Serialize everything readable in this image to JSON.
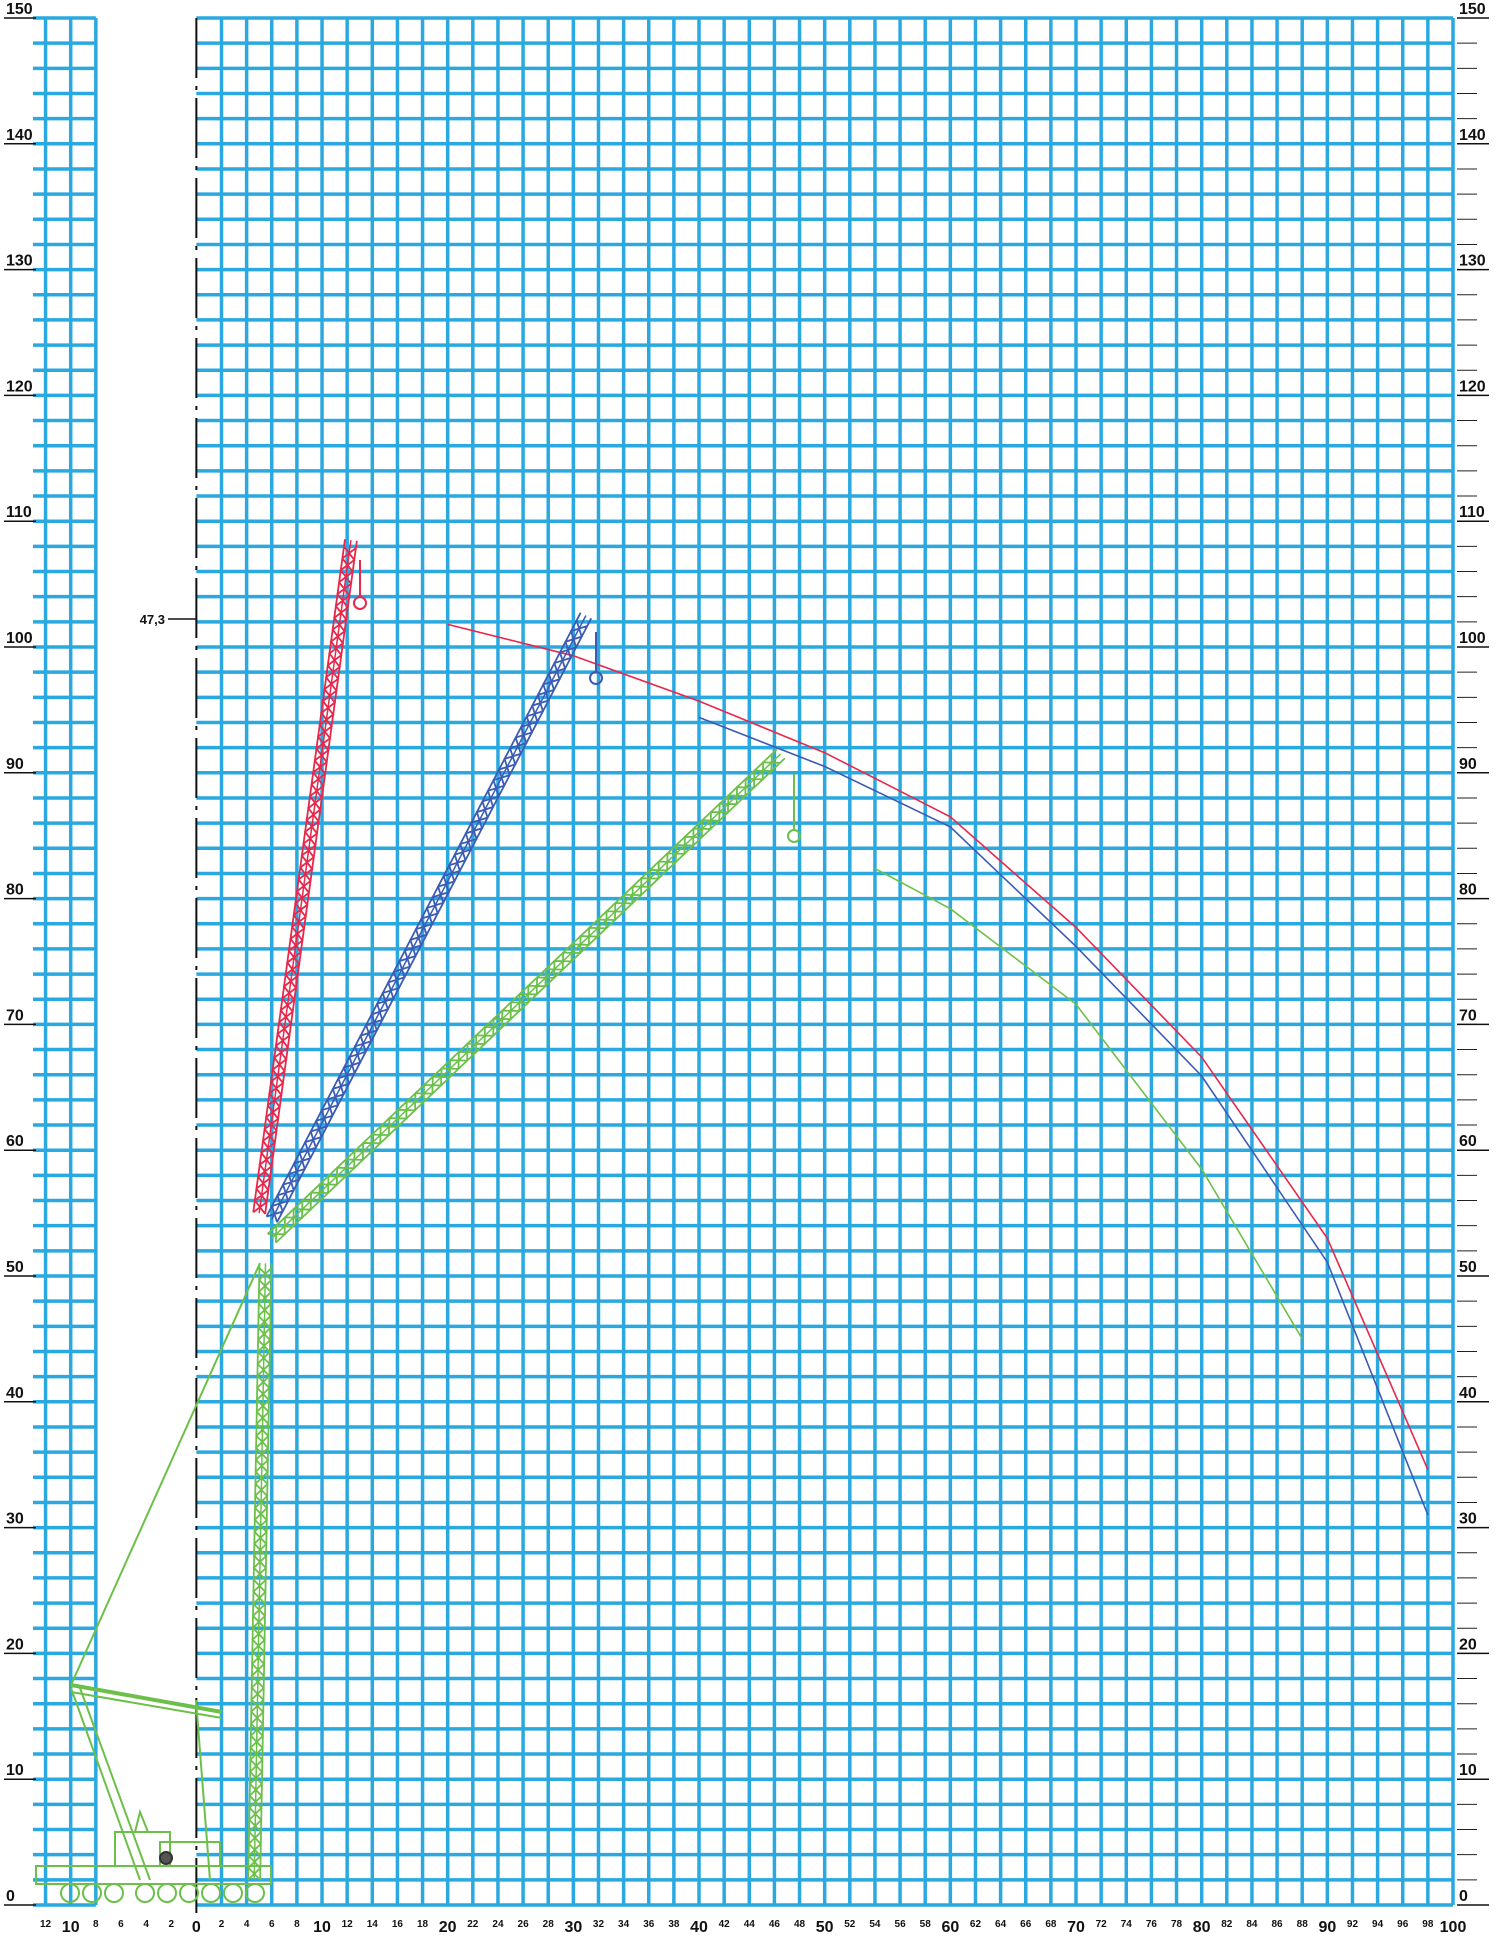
{
  "chart_data": {
    "type": "line",
    "xlim": [
      -13,
      100
    ],
    "ylim": [
      0,
      150
    ],
    "grid": true,
    "grid_color": "#2aa9e0",
    "grid_gap": [
      -8,
      0
    ],
    "xticks": [
      {
        "value": -12,
        "label": "12"
      },
      {
        "value": -10,
        "label": "10"
      },
      {
        "value": -8,
        "label": "8"
      },
      {
        "value": -6,
        "label": "6"
      },
      {
        "value": -4,
        "label": "4"
      },
      {
        "value": -2,
        "label": "2"
      },
      0,
      2,
      4,
      6,
      8,
      10,
      12,
      14,
      16,
      18,
      20,
      22,
      24,
      26,
      28,
      30,
      32,
      34,
      36,
      38,
      40,
      42,
      44,
      46,
      48,
      50,
      52,
      54,
      56,
      58,
      60,
      62,
      64,
      66,
      68,
      70,
      72,
      74,
      76,
      78,
      80,
      82,
      84,
      86,
      88,
      90,
      92,
      94,
      96,
      98,
      100
    ],
    "yticks": [
      0,
      10,
      20,
      30,
      40,
      50,
      60,
      70,
      80,
      90,
      100,
      110,
      120,
      130,
      140,
      150
    ],
    "y_gridlines": [
      0,
      2,
      4,
      6,
      8,
      10,
      12,
      14,
      16,
      18,
      20,
      22,
      24,
      26,
      28,
      30,
      32,
      34,
      36,
      38,
      40,
      42,
      44,
      46,
      48,
      50,
      52,
      54,
      56,
      58,
      60,
      62,
      64,
      66,
      68,
      70,
      72,
      74,
      76,
      78,
      80,
      82,
      84,
      86,
      88,
      90,
      92,
      94,
      96,
      98,
      100,
      102,
      104,
      106,
      108,
      110,
      112,
      114,
      116,
      118,
      120,
      122,
      124,
      126,
      128,
      130,
      132,
      134,
      136,
      138,
      140,
      142,
      144,
      146,
      148,
      150
    ],
    "annotation": "47,3",
    "series": [
      {
        "color": "#e8274b",
        "style": "curve",
        "x": [
          20,
          30,
          40,
          50,
          60,
          70,
          80,
          90,
          98
        ],
        "values": [
          101.8,
          99.3,
          95.7,
          91.6,
          86.5,
          77.7,
          67.4,
          53,
          34.6
        ]
      },
      {
        "color": "#3b5bb5",
        "style": "curve",
        "x": [
          40,
          50,
          60,
          70,
          80,
          90,
          98
        ],
        "values": [
          94.4,
          90.5,
          85.7,
          76.2,
          65.9,
          51.1,
          31
        ]
      },
      {
        "color": "#6cc04a",
        "style": "curve",
        "x": [
          54,
          60,
          70,
          80,
          88
        ],
        "values": [
          82.4,
          79.2,
          71.6,
          58.5,
          45
        ]
      },
      {
        "color": "#6cc04a",
        "style": "lattice",
        "x": [
          4.6,
          5.5
        ],
        "values": [
          2,
          51
        ]
      },
      {
        "color": "#6cc04a",
        "style": "lattice",
        "x": [
          6,
          46.5
        ],
        "values": [
          53,
          91.5
        ]
      },
      {
        "color": "#3b5bb5",
        "style": "lattice",
        "x": [
          6,
          31
        ],
        "values": [
          54.5,
          102.5
        ]
      },
      {
        "color": "#e8274b",
        "style": "lattice",
        "x": [
          5,
          12.3
        ],
        "values": [
          55,
          108.5
        ]
      }
    ]
  }
}
